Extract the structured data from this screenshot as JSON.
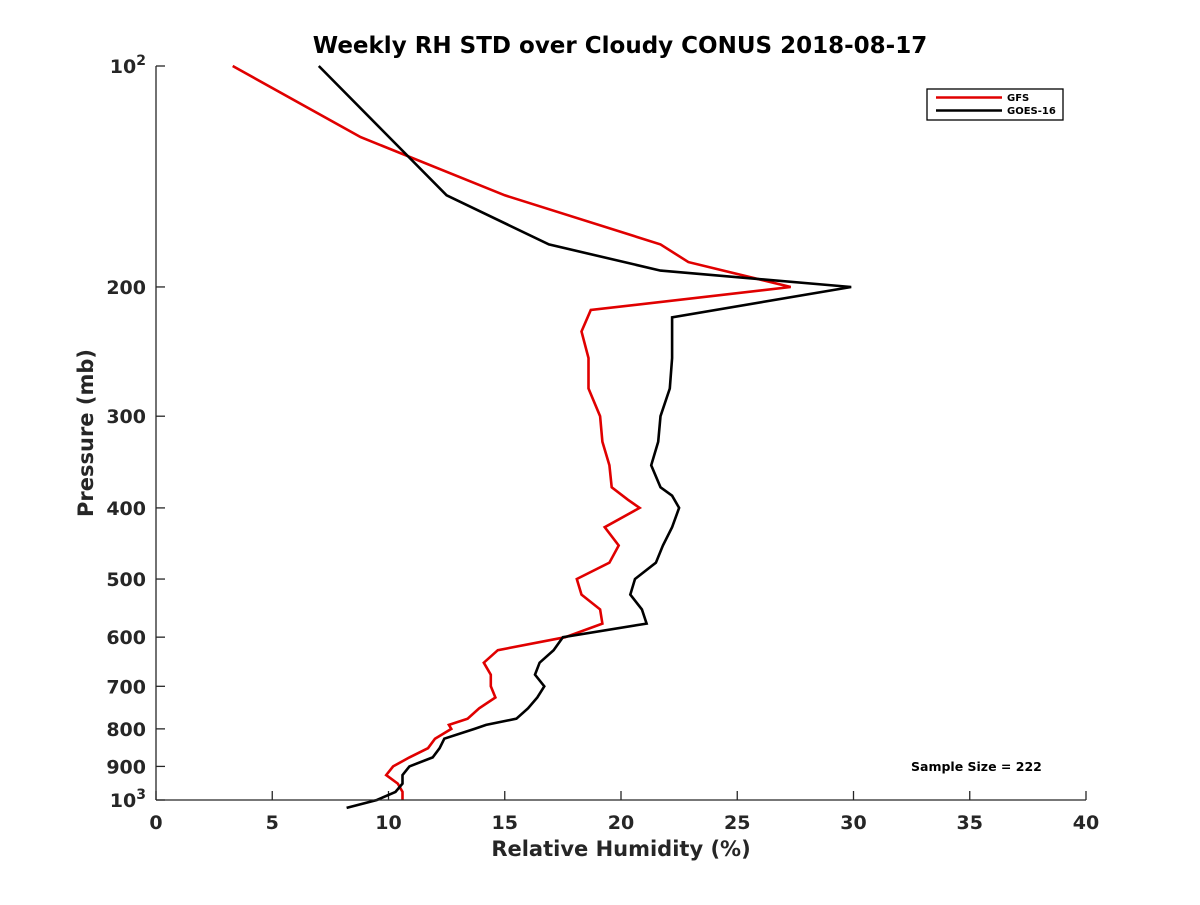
{
  "chart_data": {
    "type": "line",
    "title": "Weekly RH STD over Cloudy CONUS 2018-08-17",
    "xlabel": "Relative Humidity (%)",
    "ylabel": "Pressure (mb)",
    "xlim": [
      0,
      40
    ],
    "ylim": [
      100,
      1000
    ],
    "yscale": "log",
    "yreversed": true,
    "x_ticks": [
      0,
      5,
      10,
      15,
      20,
      25,
      30,
      35,
      40
    ],
    "x_tick_labels": [
      "0",
      "5",
      "10",
      "15",
      "20",
      "25",
      "30",
      "35",
      "40"
    ],
    "y_ticks": [
      100,
      200,
      300,
      400,
      500,
      600,
      700,
      800,
      900,
      1000
    ],
    "y_tick_labels": [
      {
        "base": "10",
        "exp": "2"
      },
      {
        "base": "200",
        "exp": ""
      },
      {
        "base": "300",
        "exp": ""
      },
      {
        "base": "400",
        "exp": ""
      },
      {
        "base": "500",
        "exp": ""
      },
      {
        "base": "600",
        "exp": ""
      },
      {
        "base": "700",
        "exp": ""
      },
      {
        "base": "800",
        "exp": ""
      },
      {
        "base": "900",
        "exp": ""
      },
      {
        "base": "10",
        "exp": "3"
      }
    ],
    "grid": false,
    "legend_position": "top-right",
    "annotation": "Sample Size = 222",
    "series": [
      {
        "name": "GFS",
        "color": "#e00000",
        "points": [
          [
            3.3,
            100
          ],
          [
            8.8,
            125
          ],
          [
            15.0,
            150
          ],
          [
            21.7,
            175
          ],
          [
            22.9,
            185
          ],
          [
            27.3,
            200
          ],
          [
            18.7,
            215
          ],
          [
            18.3,
            230
          ],
          [
            18.6,
            250
          ],
          [
            18.6,
            275
          ],
          [
            19.1,
            300
          ],
          [
            19.2,
            325
          ],
          [
            19.5,
            350
          ],
          [
            19.6,
            375
          ],
          [
            20.3,
            390
          ],
          [
            20.8,
            400
          ],
          [
            19.3,
            425
          ],
          [
            19.9,
            450
          ],
          [
            19.5,
            475
          ],
          [
            18.1,
            500
          ],
          [
            18.3,
            525
          ],
          [
            19.1,
            550
          ],
          [
            19.2,
            575
          ],
          [
            17.6,
            600
          ],
          [
            14.7,
            625
          ],
          [
            14.1,
            650
          ],
          [
            14.4,
            675
          ],
          [
            14.4,
            700
          ],
          [
            14.6,
            725
          ],
          [
            13.9,
            750
          ],
          [
            13.4,
            775
          ],
          [
            12.6,
            790
          ],
          [
            12.7,
            800
          ],
          [
            12.0,
            825
          ],
          [
            11.7,
            850
          ],
          [
            10.9,
            875
          ],
          [
            10.2,
            900
          ],
          [
            9.9,
            925
          ],
          [
            10.4,
            950
          ],
          [
            10.6,
            975
          ],
          [
            10.6,
            1000
          ]
        ]
      },
      {
        "name": "GOES-16",
        "color": "#000000",
        "points": [
          [
            7.0,
            100
          ],
          [
            12.5,
            150
          ],
          [
            16.9,
            175
          ],
          [
            21.7,
            190
          ],
          [
            29.9,
            200
          ],
          [
            22.2,
            220
          ],
          [
            22.2,
            250
          ],
          [
            22.1,
            275
          ],
          [
            21.7,
            300
          ],
          [
            21.6,
            325
          ],
          [
            21.3,
            350
          ],
          [
            21.7,
            375
          ],
          [
            22.2,
            385
          ],
          [
            22.5,
            400
          ],
          [
            22.2,
            425
          ],
          [
            21.8,
            450
          ],
          [
            21.5,
            475
          ],
          [
            20.6,
            500
          ],
          [
            20.4,
            525
          ],
          [
            20.9,
            550
          ],
          [
            21.1,
            575
          ],
          [
            17.5,
            600
          ],
          [
            17.1,
            625
          ],
          [
            16.5,
            650
          ],
          [
            16.3,
            675
          ],
          [
            16.7,
            700
          ],
          [
            16.4,
            725
          ],
          [
            16.0,
            750
          ],
          [
            15.5,
            775
          ],
          [
            14.2,
            790
          ],
          [
            13.7,
            800
          ],
          [
            12.4,
            825
          ],
          [
            12.2,
            850
          ],
          [
            11.9,
            875
          ],
          [
            10.9,
            900
          ],
          [
            10.6,
            925
          ],
          [
            10.6,
            950
          ],
          [
            10.3,
            975
          ],
          [
            9.5,
            1000
          ],
          [
            8.2,
            1025
          ]
        ]
      }
    ]
  }
}
